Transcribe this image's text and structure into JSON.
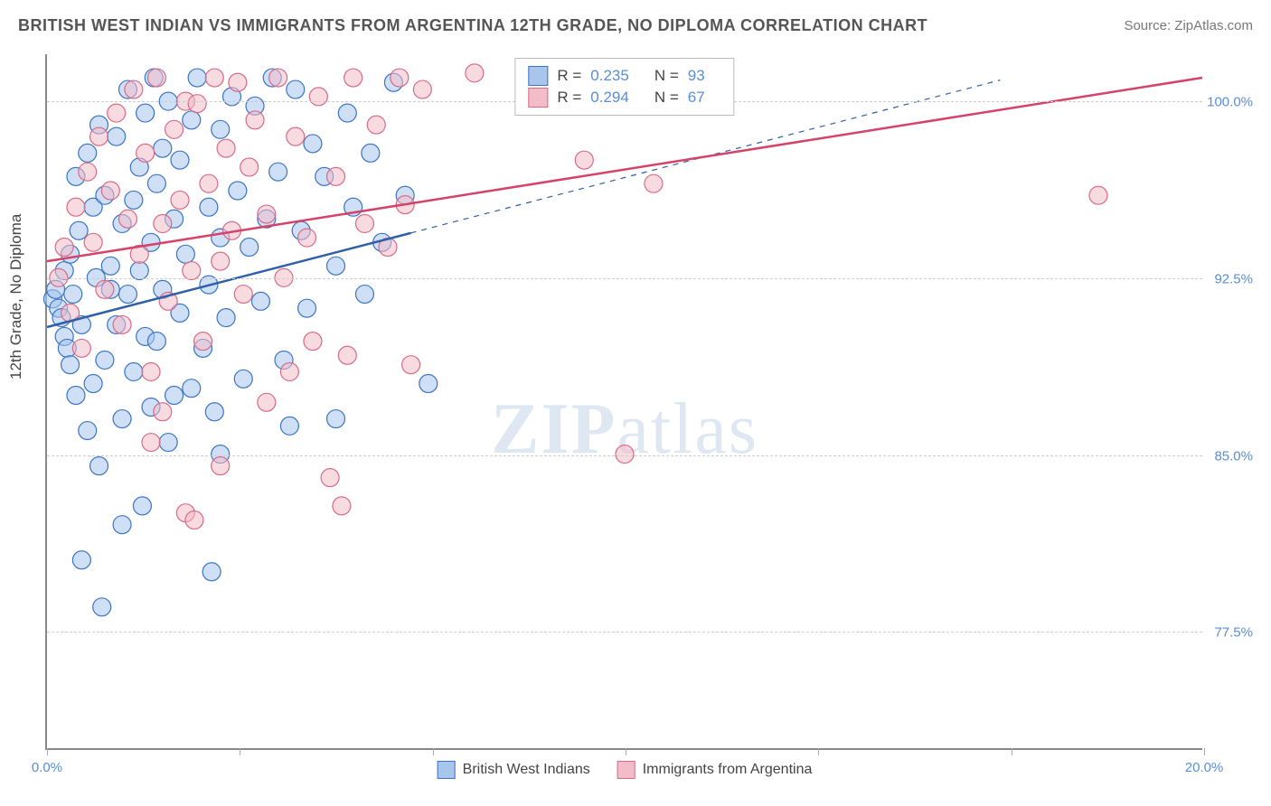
{
  "title": "BRITISH WEST INDIAN VS IMMIGRANTS FROM ARGENTINA 12TH GRADE, NO DIPLOMA CORRELATION CHART",
  "source": "Source: ZipAtlas.com",
  "y_axis_label": "12th Grade, No Diploma",
  "watermark_prefix": "ZIP",
  "watermark_suffix": "atlas",
  "chart": {
    "type": "scatter",
    "xlim": [
      0,
      20
    ],
    "ylim": [
      72.5,
      102
    ],
    "x_ticks": [
      0,
      3.33,
      6.67,
      10,
      13.33,
      16.67,
      20
    ],
    "x_tick_labels": {
      "0": "0.0%",
      "20": "20.0%"
    },
    "y_grid": [
      77.5,
      85.0,
      92.5,
      100.0
    ],
    "y_tick_labels": [
      "77.5%",
      "85.0%",
      "92.5%",
      "100.0%"
    ],
    "background_color": "#ffffff",
    "grid_color": "#cccccc",
    "axis_color": "#888888",
    "tick_label_color": "#5b8dd6",
    "marker_radius": 10,
    "marker_opacity": 0.55,
    "marker_stroke_width": 1.2,
    "trend_line_width": 2.5,
    "trend_dashed_width": 1.2,
    "series": [
      {
        "name": "British West Indians",
        "fill": "#a8c5ec",
        "stroke": "#3a74c4",
        "line_color": "#2e5fa8",
        "R": "0.235",
        "N": "93",
        "trend": {
          "x1": 0,
          "y1": 90.4,
          "x2": 6.3,
          "y2": 94.4,
          "dash_to_x": 16.5,
          "dash_to_y": 100.9
        },
        "points": [
          [
            0.1,
            91.6
          ],
          [
            0.15,
            92.0
          ],
          [
            0.2,
            91.2
          ],
          [
            0.25,
            90.8
          ],
          [
            0.3,
            92.8
          ],
          [
            0.3,
            90.0
          ],
          [
            0.35,
            89.5
          ],
          [
            0.4,
            93.5
          ],
          [
            0.4,
            88.8
          ],
          [
            0.45,
            91.8
          ],
          [
            0.5,
            96.8
          ],
          [
            0.5,
            87.5
          ],
          [
            0.55,
            94.5
          ],
          [
            0.6,
            90.5
          ],
          [
            0.7,
            97.8
          ],
          [
            0.7,
            86.0
          ],
          [
            0.8,
            95.5
          ],
          [
            0.8,
            88.0
          ],
          [
            0.85,
            92.5
          ],
          [
            0.9,
            99.0
          ],
          [
            0.9,
            84.5
          ],
          [
            1.0,
            96.0
          ],
          [
            1.0,
            89.0
          ],
          [
            1.1,
            93.0
          ],
          [
            1.2,
            98.5
          ],
          [
            1.2,
            90.5
          ],
          [
            1.3,
            94.8
          ],
          [
            1.3,
            86.5
          ],
          [
            1.4,
            100.5
          ],
          [
            1.4,
            91.8
          ],
          [
            1.5,
            95.8
          ],
          [
            1.5,
            88.5
          ],
          [
            1.6,
            97.2
          ],
          [
            1.6,
            92.8
          ],
          [
            1.7,
            99.5
          ],
          [
            1.7,
            90.0
          ],
          [
            1.8,
            94.0
          ],
          [
            1.8,
            87.0
          ],
          [
            1.85,
            101.0
          ],
          [
            1.9,
            96.5
          ],
          [
            1.9,
            89.8
          ],
          [
            2.0,
            92.0
          ],
          [
            2.0,
            98.0
          ],
          [
            2.1,
            100.0
          ],
          [
            2.1,
            85.5
          ],
          [
            2.2,
            95.0
          ],
          [
            2.3,
            91.0
          ],
          [
            2.3,
            97.5
          ],
          [
            2.4,
            93.5
          ],
          [
            2.5,
            99.2
          ],
          [
            2.5,
            87.8
          ],
          [
            2.6,
            101.0
          ],
          [
            2.7,
            89.5
          ],
          [
            2.8,
            95.5
          ],
          [
            2.8,
            92.2
          ],
          [
            2.9,
            86.8
          ],
          [
            3.0,
            98.8
          ],
          [
            3.0,
            94.2
          ],
          [
            3.1,
            90.8
          ],
          [
            3.2,
            100.2
          ],
          [
            3.3,
            96.2
          ],
          [
            3.4,
            88.2
          ],
          [
            3.5,
            93.8
          ],
          [
            3.6,
            99.8
          ],
          [
            3.7,
            91.5
          ],
          [
            3.8,
            95.0
          ],
          [
            3.9,
            101.0
          ],
          [
            4.0,
            97.0
          ],
          [
            4.1,
            89.0
          ],
          [
            4.2,
            86.2
          ],
          [
            4.3,
            100.5
          ],
          [
            4.4,
            94.5
          ],
          [
            4.5,
            91.2
          ],
          [
            4.6,
            98.2
          ],
          [
            4.8,
            96.8
          ],
          [
            5.0,
            93.0
          ],
          [
            5.0,
            86.5
          ],
          [
            5.2,
            99.5
          ],
          [
            5.3,
            95.5
          ],
          [
            5.5,
            91.8
          ],
          [
            5.6,
            97.8
          ],
          [
            5.8,
            94.0
          ],
          [
            6.0,
            100.8
          ],
          [
            6.2,
            96.0
          ],
          [
            6.6,
            88.0
          ],
          [
            2.85,
            80.0
          ],
          [
            1.3,
            82.0
          ],
          [
            1.65,
            82.8
          ],
          [
            0.6,
            80.5
          ],
          [
            0.95,
            78.5
          ],
          [
            1.1,
            92.0
          ],
          [
            2.2,
            87.5
          ],
          [
            3.0,
            85.0
          ]
        ]
      },
      {
        "name": "Immigrants from Argentina",
        "fill": "#f3bcc9",
        "stroke": "#d96a87",
        "line_color": "#d5426a",
        "R": "0.294",
        "N": "67",
        "trend": {
          "x1": 0,
          "y1": 93.2,
          "x2": 20,
          "y2": 101.0
        },
        "points": [
          [
            0.2,
            92.5
          ],
          [
            0.3,
            93.8
          ],
          [
            0.4,
            91.0
          ],
          [
            0.5,
            95.5
          ],
          [
            0.6,
            89.5
          ],
          [
            0.7,
            97.0
          ],
          [
            0.8,
            94.0
          ],
          [
            0.9,
            98.5
          ],
          [
            1.0,
            92.0
          ],
          [
            1.1,
            96.2
          ],
          [
            1.2,
            99.5
          ],
          [
            1.3,
            90.5
          ],
          [
            1.4,
            95.0
          ],
          [
            1.5,
            100.5
          ],
          [
            1.6,
            93.5
          ],
          [
            1.7,
            97.8
          ],
          [
            1.8,
            88.5
          ],
          [
            1.9,
            101.0
          ],
          [
            2.0,
            94.8
          ],
          [
            2.1,
            91.5
          ],
          [
            2.2,
            98.8
          ],
          [
            2.3,
            95.8
          ],
          [
            2.4,
            100.0
          ],
          [
            2.5,
            92.8
          ],
          [
            2.6,
            99.9
          ],
          [
            2.7,
            89.8
          ],
          [
            2.8,
            96.5
          ],
          [
            2.9,
            101.0
          ],
          [
            3.0,
            93.2
          ],
          [
            3.1,
            98.0
          ],
          [
            3.2,
            94.5
          ],
          [
            3.3,
            100.8
          ],
          [
            3.4,
            91.8
          ],
          [
            3.5,
            97.2
          ],
          [
            3.6,
            99.2
          ],
          [
            3.8,
            95.2
          ],
          [
            4.0,
            101.0
          ],
          [
            4.1,
            92.5
          ],
          [
            4.3,
            98.5
          ],
          [
            4.5,
            94.2
          ],
          [
            4.7,
            100.2
          ],
          [
            4.9,
            84.0
          ],
          [
            5.0,
            96.8
          ],
          [
            5.2,
            89.2
          ],
          [
            5.3,
            101.0
          ],
          [
            5.5,
            94.8
          ],
          [
            5.7,
            99.0
          ],
          [
            5.9,
            93.8
          ],
          [
            6.1,
            101.0
          ],
          [
            6.2,
            95.6
          ],
          [
            6.3,
            88.8
          ],
          [
            6.5,
            100.5
          ],
          [
            8.5,
            101.0
          ],
          [
            9.3,
            97.5
          ],
          [
            10.0,
            85.0
          ],
          [
            10.5,
            96.5
          ],
          [
            2.4,
            82.5
          ],
          [
            2.55,
            82.2
          ],
          [
            3.0,
            84.5
          ],
          [
            3.8,
            87.2
          ],
          [
            4.2,
            88.5
          ],
          [
            4.6,
            89.8
          ],
          [
            1.8,
            85.5
          ],
          [
            2.0,
            86.8
          ],
          [
            5.1,
            82.8
          ],
          [
            18.2,
            96.0
          ],
          [
            7.4,
            101.2
          ]
        ]
      }
    ],
    "bottom_legend": [
      {
        "label": "British West Indians",
        "fill": "#a8c5ec",
        "stroke": "#3a74c4"
      },
      {
        "label": "Immigrants from Argentina",
        "fill": "#f3bcc9",
        "stroke": "#d96a87"
      }
    ]
  }
}
